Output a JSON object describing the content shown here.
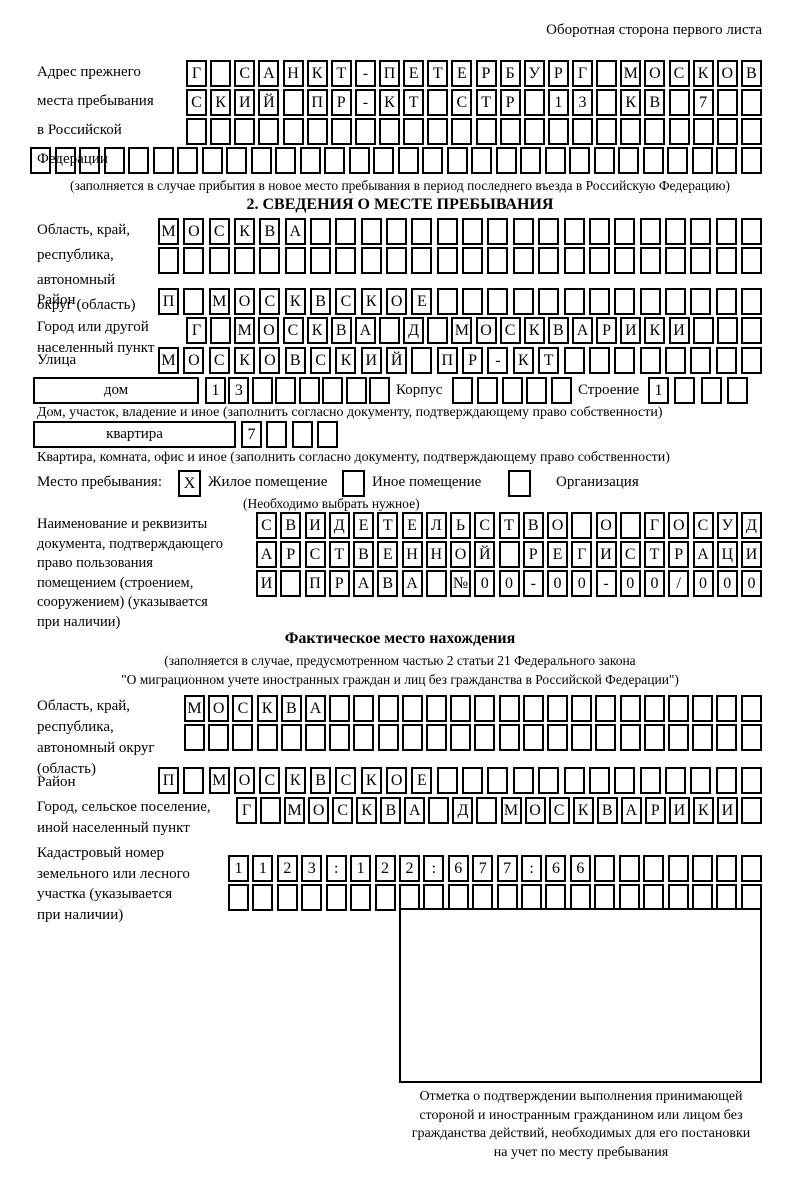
{
  "page": {
    "header_note": "Оборотная сторона первого листа"
  },
  "prev_address": {
    "label_lines": [
      "Адрес прежнего",
      "места пребывания",
      "в Российской",
      "Федерации"
    ],
    "rows": [
      "Г_САНКТ-ПЕТЕРБУРГ_МОСКОВ",
      "СКИЙ_ПР-КТ_СТР_13_КВ_7__",
      "________________________",
      "______________________________"
    ],
    "note": "(заполняется в случае прибытия в новое место пребывания в период последнего въезда в Российскую Федерацию)"
  },
  "section2": {
    "title": "2. СВЕДЕНИЯ О МЕСТЕ ПРЕБЫВАНИЯ",
    "region": {
      "label_lines": [
        "Область, край,",
        "республика,",
        "автономный",
        "округ (область)"
      ],
      "rows": [
        "МОСКВА__________________",
        "________________________"
      ]
    },
    "district": {
      "label": "Район",
      "row": "П_МОСКВСКОЕ_____________"
    },
    "city": {
      "label_lines": [
        "Город или другой",
        "населенный пункт"
      ],
      "row": "Г_МОСКВА_Д_МОСКВАРИКИ___"
    },
    "street": {
      "label": "Улица",
      "row": "МОСКОВСКИЙ_ПР-КТ________"
    },
    "house": {
      "field_label": "дом",
      "cells": "13______",
      "korpus_label": "Корпус",
      "korpus_cells": "_____",
      "stroenie_label": "Строение",
      "stroenie_cells": "1___",
      "note": "Дом, участок, владение и иное (заполнить согласно документу, подтверждающему право собственности)"
    },
    "apartment": {
      "field_label": "квартира",
      "cells": "7___",
      "note": "Квартира, комната, офис и иное (заполнить согласно документу, подтверждающему право собственности)"
    },
    "stay_type": {
      "label": "Место пребывания:",
      "options": [
        {
          "mark": "X",
          "label": "Жилое помещение"
        },
        {
          "mark": "",
          "label": "Иное помещение"
        },
        {
          "mark": "",
          "label": "Организация"
        }
      ],
      "note": "(Необходимо выбрать нужное)"
    },
    "document": {
      "label_lines": [
        "Наименование и реквизиты",
        "документа, подтверждающего",
        "право пользования",
        "помещением (строением,",
        "сооружением) (указывается",
        "при наличии)"
      ],
      "rows": [
        "СВИДЕТЕЛЬСТВО_О_ГОСУД",
        "АРСТВЕННОЙ_РЕГИСТРАЦИ",
        "И_ПРАВА_№00-00-00/000"
      ]
    }
  },
  "actual_location": {
    "title": "Фактическое место нахождения",
    "note_lines": [
      "(заполняется в случае, предусмотренном частью 2 статьи 21 Федерального закона",
      "\"О миграционном учете иностранных граждан и лиц без гражданства в Российской Федерации\")"
    ],
    "region": {
      "label_lines": [
        "Область, край,",
        "республика,",
        "автономный округ",
        "(область)"
      ],
      "rows": [
        "МОСКВА__________________",
        "________________________"
      ]
    },
    "district": {
      "label": "Район",
      "row": "П_МОСКВСКОЕ_____________"
    },
    "city": {
      "label_lines": [
        "Город, сельское поселение,",
        "иной населенный пункт"
      ],
      "row": "Г_МОСКВА_Д_МОСКВАРИКИ_"
    },
    "cadastral": {
      "label_lines": [
        "Кадастровый номер",
        "земельного или лесного",
        "участка (указывается",
        "при наличии)"
      ],
      "rows": [
        "1123:122:677:66_______",
        "______________________"
      ]
    }
  },
  "stamp": {
    "note_lines": [
      "Отметка о подтверждении выполнения принимающей",
      "стороной и иностранным гражданином или лицом без",
      "гражданства действий, необходимых для его постановки",
      "на учет по месту пребывания"
    ]
  }
}
